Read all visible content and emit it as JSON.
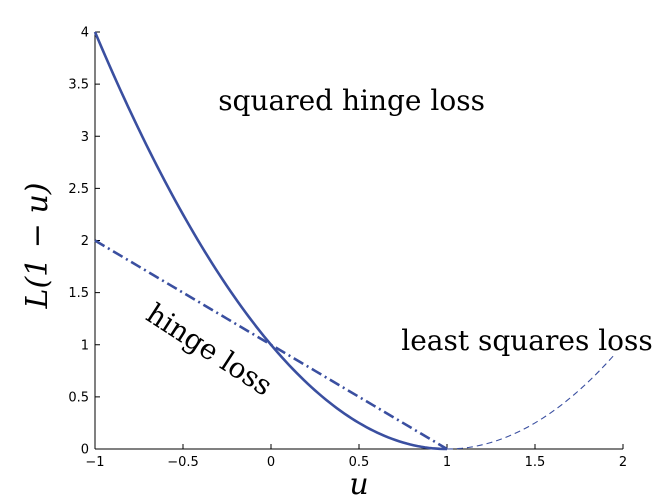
{
  "chart_data": {
    "type": "line",
    "xlabel": "u",
    "ylabel": "L(1 − u)",
    "xlim": [
      -1,
      2
    ],
    "ylim": [
      0,
      4
    ],
    "x_ticks": [
      -1,
      -0.5,
      0,
      0.5,
      1,
      1.5,
      2
    ],
    "x_tick_labels": [
      "−1",
      "−0.5",
      "0",
      "0.5",
      "1",
      "1.5",
      "2"
    ],
    "y_ticks": [
      0,
      0.5,
      1,
      1.5,
      2,
      2.5,
      3,
      3.5,
      4
    ],
    "y_tick_labels": [
      "0",
      "0.5",
      "1",
      "1.5",
      "2",
      "2.5",
      "3",
      "3.5",
      "4"
    ],
    "grid": false,
    "series_color": "#3a4fa0",
    "series": [
      {
        "style": "solid",
        "x": [
          -1,
          -0.75,
          -0.5,
          -0.25,
          0,
          0.25,
          0.5,
          0.75,
          1
        ],
        "y": [
          4,
          3.0625,
          2.25,
          1.5625,
          1,
          0.5625,
          0.25,
          0.0625,
          0
        ]
      },
      {
        "style": "dashdot",
        "x": [
          -1,
          0,
          1
        ],
        "y": [
          2,
          1,
          0
        ]
      },
      {
        "style": "dashed",
        "x": [
          1,
          1.25,
          1.5,
          1.75,
          1.95
        ],
        "y": [
          0,
          0.0625,
          0.25,
          0.5625,
          0.9025
        ]
      }
    ],
    "annotations": [
      {
        "text": "squared hinge loss",
        "x": -0.3,
        "y": 3.25,
        "rotation": 0
      },
      {
        "text": "hinge loss",
        "x": -0.72,
        "y": 1.25,
        "rotation": 33
      },
      {
        "text": "least squares loss",
        "x": 0.74,
        "y": 0.95,
        "rotation": 0
      }
    ]
  }
}
